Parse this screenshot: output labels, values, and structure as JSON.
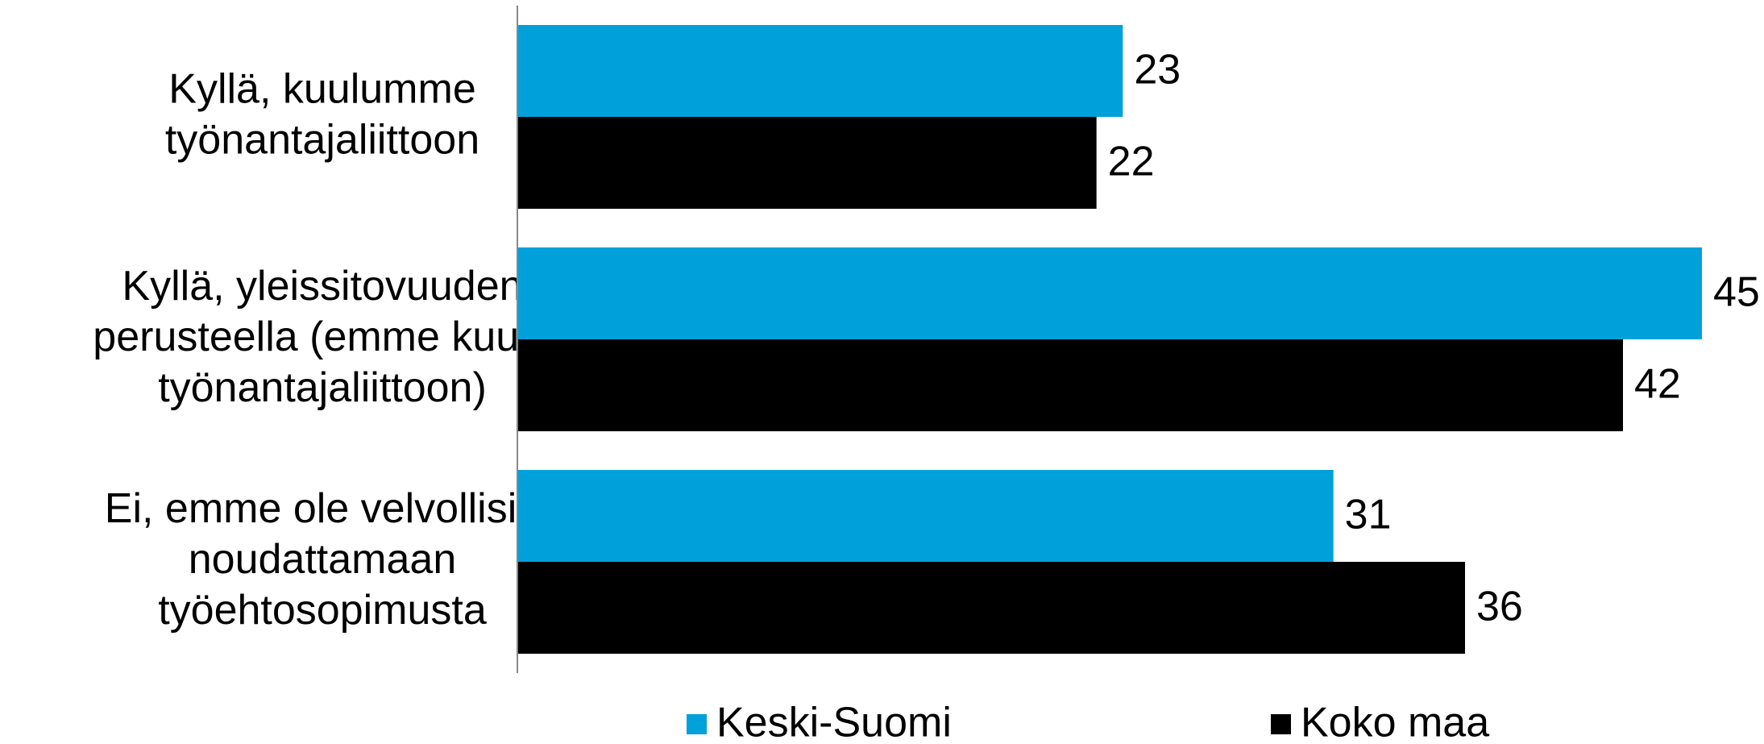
{
  "chart_data": {
    "type": "bar",
    "orientation": "horizontal",
    "categories": [
      "Kyllä, kuulumme\ntyönantajaliittoon",
      "Kyllä, yleissitovuuden\nperusteella (emme kuulu\ntyönantajaliittoon)",
      "Ei, emme ole velvollisia\nnoudattamaan\ntyöehtosopimusta"
    ],
    "series": [
      {
        "name": "Keski-Suomi",
        "color": "#00a0db",
        "values": [
          23,
          45,
          31
        ]
      },
      {
        "name": "Koko maa",
        "color": "#000000",
        "values": [
          22,
          42,
          36
        ]
      }
    ],
    "xlim": [
      0,
      45
    ],
    "legend": "bottom",
    "grid": false
  }
}
